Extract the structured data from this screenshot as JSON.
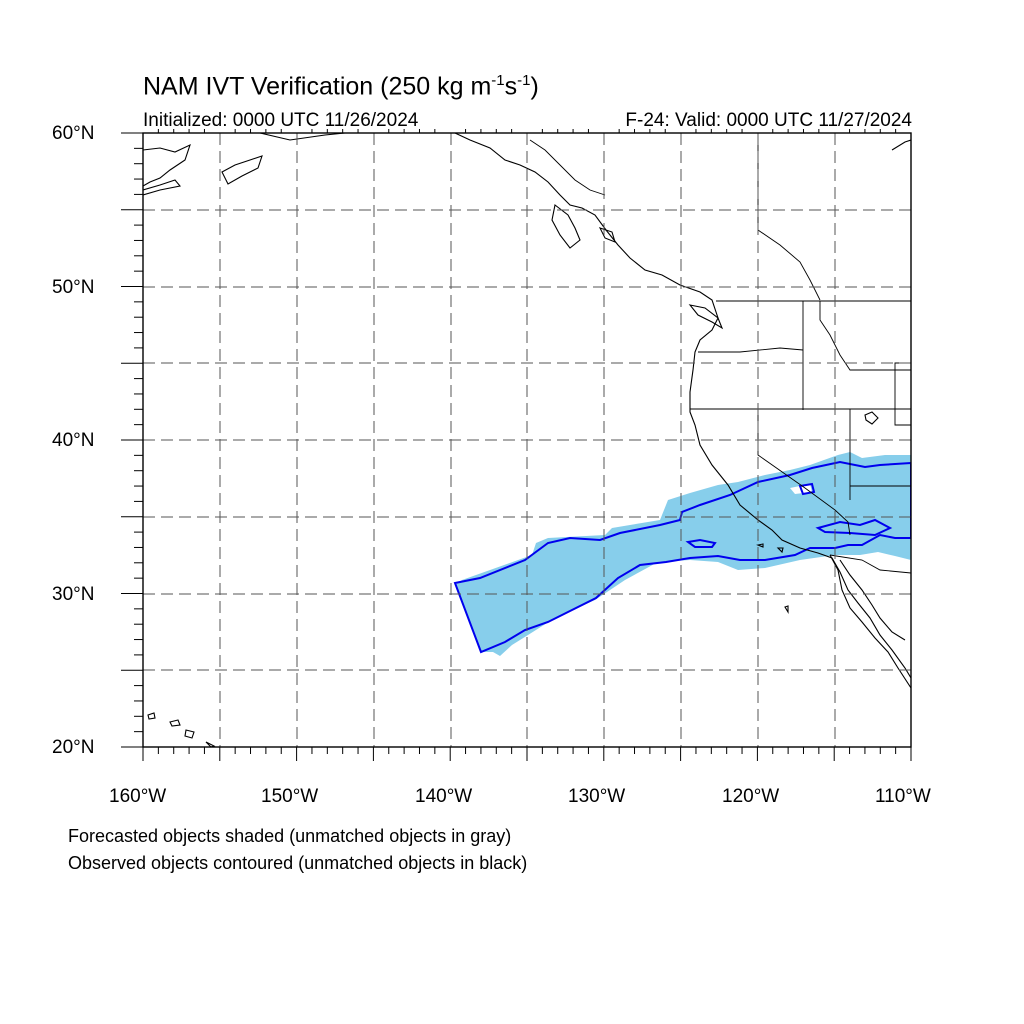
{
  "title": {
    "prefix": "NAM IVT Verification (250 kg m",
    "exp1": "-1",
    "mid": "s",
    "exp2": "-1",
    "suffix": ")"
  },
  "initialized": "Initialized: 0000 UTC 11/26/2024",
  "valid": "F-24: Valid: 0000 UTC 11/27/2024",
  "lat_labels": [
    "60°N",
    "50°N",
    "40°N",
    "30°N",
    "20°N"
  ],
  "lon_labels": [
    "160°W",
    "150°W",
    "140°W",
    "130°W",
    "120°W",
    "110°W"
  ],
  "legend": {
    "line1": "Forecasted objects shaded (unmatched objects in gray)",
    "line2": "Observed objects contoured (unmatched objects in black)"
  },
  "colors": {
    "forecast_fill": "#87ceeb",
    "observed_contour": "#0000ee",
    "coastline": "#000000",
    "grid": "#555555"
  },
  "map_extent": {
    "lon": [
      -160,
      -110
    ],
    "lat": [
      20,
      60
    ],
    "grid_step_deg": 5
  }
}
